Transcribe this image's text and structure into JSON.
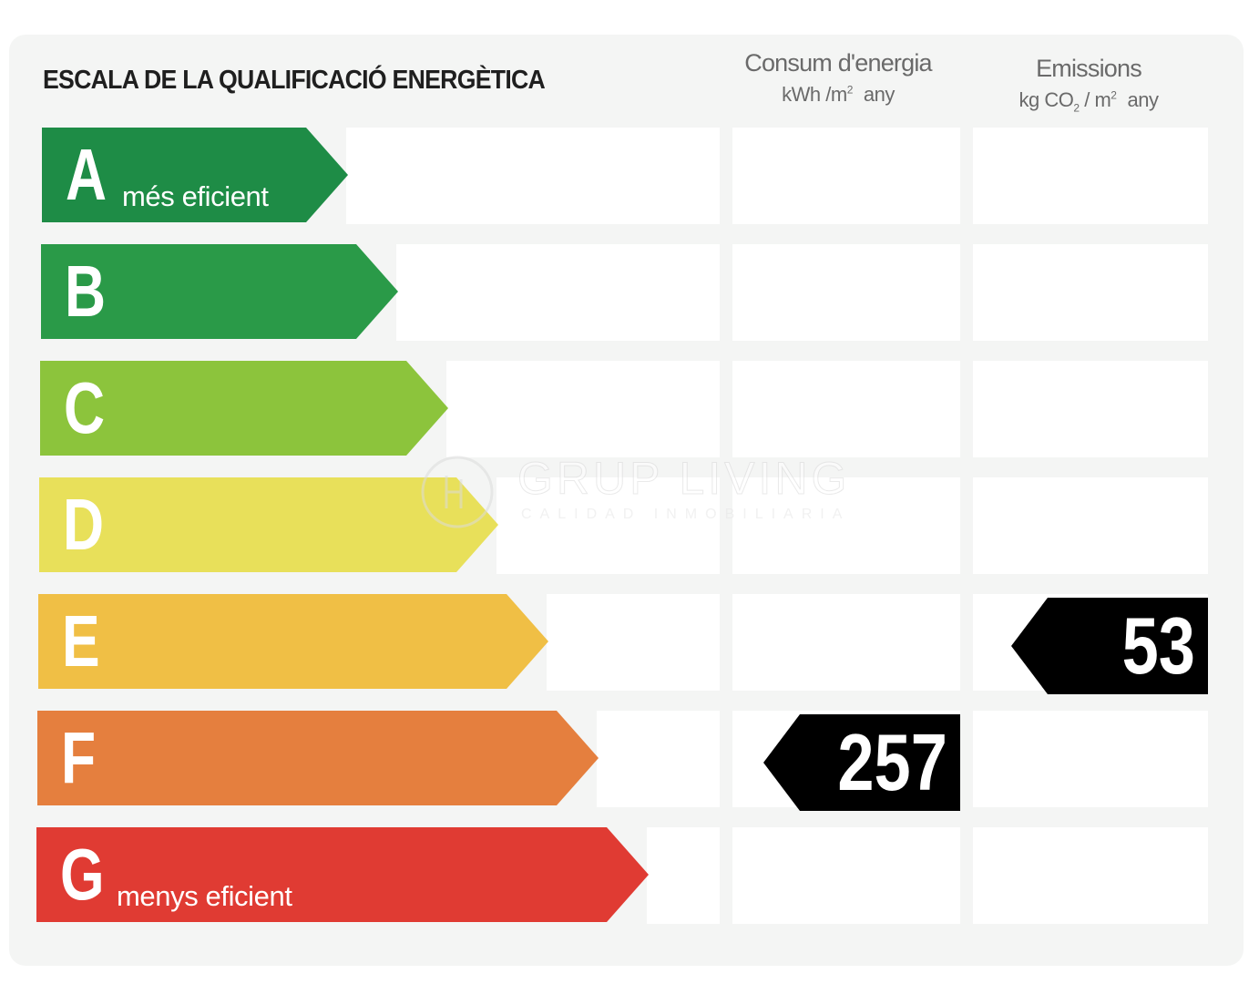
{
  "title": "ESCALA DE LA QUALIFICACIÓ ENERGÈTICA",
  "columns": {
    "energy": {
      "label": "Consum d'energia",
      "unit_a": "kWh /m",
      "unit_sup": "2",
      "unit_b": "any"
    },
    "emissions": {
      "label": "Emissions",
      "unit_a": "kg CO",
      "unit_sub": "2",
      "unit_mid": "/ m",
      "unit_sup": "2",
      "unit_b": "any"
    }
  },
  "bands": [
    {
      "letter": "A",
      "subtitle": "més eficient",
      "color": "#1e8c46"
    },
    {
      "letter": "B",
      "subtitle": "",
      "color": "#2a9a48"
    },
    {
      "letter": "C",
      "subtitle": "",
      "color": "#8cc43c"
    },
    {
      "letter": "D",
      "subtitle": "",
      "color": "#e8e05a"
    },
    {
      "letter": "E",
      "subtitle": "",
      "color": "#f0bf45"
    },
    {
      "letter": "F",
      "subtitle": "",
      "color": "#e57f3e"
    },
    {
      "letter": "G",
      "subtitle": "menys eficient",
      "color": "#e03b33"
    }
  ],
  "ratings": {
    "energy": {
      "value": "257",
      "band": "F"
    },
    "emissions": {
      "value": "53",
      "band": "E"
    }
  },
  "watermark": {
    "name": "GRUP LIVING",
    "tagline": "CALIDAD INMOBILIARIA"
  }
}
